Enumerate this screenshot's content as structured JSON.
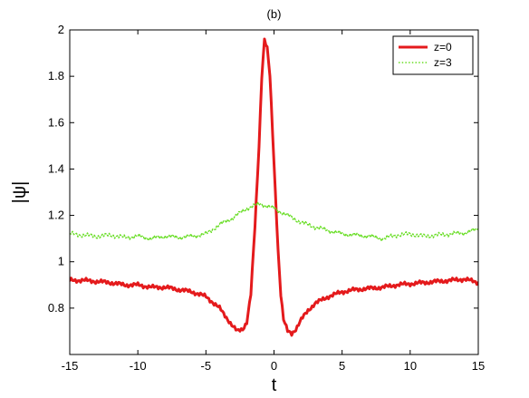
{
  "chart_data": {
    "type": "line",
    "title": "(b)",
    "xlabel": "t",
    "ylabel": "|ψ|",
    "xlim": [
      -15,
      15
    ],
    "ylim": [
      0.6,
      2.0
    ],
    "xticks": [
      -15,
      -10,
      -5,
      0,
      5,
      10,
      15
    ],
    "yticks": [
      0.8,
      1.0,
      1.2,
      1.4,
      1.6,
      1.8,
      2.0
    ],
    "ytick_labels": [
      "0.8",
      "1",
      "1.2",
      "1.4",
      "1.6",
      "1.8",
      "2"
    ],
    "grid": false,
    "legend_position": "top-right",
    "series": [
      {
        "name": "z=0",
        "color": "#e41a1c",
        "style": "solid",
        "x": [
          -15,
          -14,
          -13,
          -12,
          -11,
          -10,
          -9,
          -8,
          -7,
          -6,
          -5,
          -4,
          -3.5,
          -3,
          -2.7,
          -2.3,
          -2,
          -1.7,
          -1.4,
          -1.1,
          -0.9,
          -0.7,
          -0.5,
          -0.3,
          -0.1,
          0.1,
          0.3,
          0.5,
          0.7,
          1.0,
          1.3,
          1.6,
          2,
          2.5,
          3,
          4,
          5,
          6,
          7,
          8,
          9,
          10,
          11,
          12,
          13,
          14,
          15
        ],
        "y": [
          0.92,
          0.92,
          0.915,
          0.91,
          0.9,
          0.9,
          0.89,
          0.89,
          0.88,
          0.87,
          0.85,
          0.8,
          0.76,
          0.72,
          0.7,
          0.71,
          0.74,
          0.86,
          1.15,
          1.5,
          1.8,
          1.96,
          1.92,
          1.8,
          1.55,
          1.3,
          1.05,
          0.86,
          0.75,
          0.7,
          0.69,
          0.71,
          0.75,
          0.79,
          0.82,
          0.85,
          0.87,
          0.88,
          0.885,
          0.89,
          0.9,
          0.905,
          0.91,
          0.915,
          0.92,
          0.925,
          0.91
        ]
      },
      {
        "name": "z=3",
        "color": "#66dd22",
        "style": "dotted",
        "x": [
          -15,
          -14,
          -13,
          -12,
          -11,
          -10,
          -9,
          -8,
          -7,
          -6,
          -5,
          -4,
          -3,
          -2,
          -1,
          0,
          1,
          2,
          3,
          4,
          5,
          6,
          7,
          8,
          9,
          10,
          11,
          12,
          13,
          14,
          15
        ],
        "y": [
          1.12,
          1.115,
          1.11,
          1.115,
          1.105,
          1.11,
          1.1,
          1.11,
          1.105,
          1.11,
          1.12,
          1.16,
          1.19,
          1.23,
          1.25,
          1.23,
          1.2,
          1.17,
          1.15,
          1.135,
          1.12,
          1.115,
          1.11,
          1.1,
          1.115,
          1.12,
          1.11,
          1.115,
          1.12,
          1.125,
          1.14
        ]
      }
    ]
  }
}
